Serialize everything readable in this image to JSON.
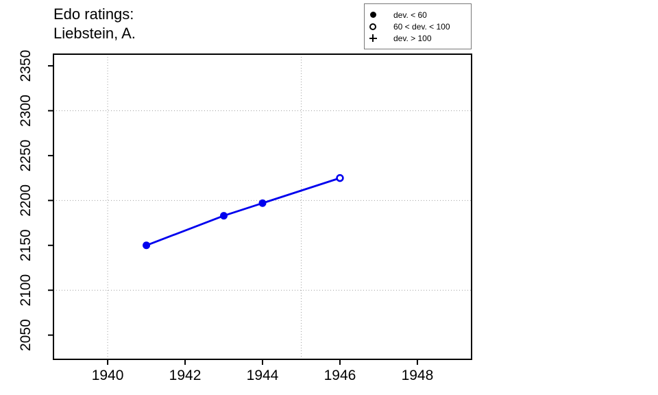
{
  "title": {
    "line1": "Edo ratings:",
    "line2": "Liebstein, A."
  },
  "legend": {
    "items": [
      {
        "symbol": "filled-circle",
        "label": "dev. < 60"
      },
      {
        "symbol": "open-circle",
        "label": "60 < dev. < 100"
      },
      {
        "symbol": "plus",
        "label": "dev. > 100"
      }
    ]
  },
  "colors": {
    "series": "#0000EE",
    "grid": "#9e9e9e",
    "axis": "#000000",
    "text": "#000000"
  },
  "chart_data": {
    "type": "line",
    "title": "Edo ratings: Liebstein, A.",
    "xlabel": "",
    "ylabel": "",
    "xlim": [
      1938.6,
      1949.4
    ],
    "ylim": [
      2023,
      2363
    ],
    "x_ticks": [
      1940,
      1942,
      1944,
      1946,
      1948
    ],
    "y_ticks": [
      2050,
      2100,
      2150,
      2200,
      2250,
      2300,
      2350
    ],
    "grid": true,
    "grid_x": [
      1940,
      1945
    ],
    "grid_y": [
      2100,
      2200,
      2300
    ],
    "legend_position": "top-right",
    "series": [
      {
        "name": "Edo rating",
        "points": [
          {
            "x": 1941,
            "y": 2150,
            "marker": "filled-circle"
          },
          {
            "x": 1943,
            "y": 2183,
            "marker": "filled-circle"
          },
          {
            "x": 1944,
            "y": 2197,
            "marker": "filled-circle"
          },
          {
            "x": 1946,
            "y": 2225,
            "marker": "open-circle"
          }
        ]
      }
    ]
  }
}
